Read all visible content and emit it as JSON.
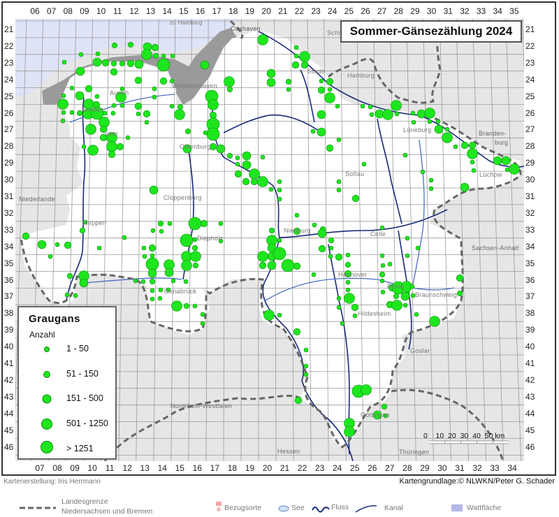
{
  "title": "Sommer-Gänsezählung 2024",
  "grid": {
    "top_columns": [
      "06",
      "07",
      "08",
      "09",
      "10",
      "11",
      "12",
      "13",
      "14",
      "15",
      "16",
      "17",
      "18",
      "19",
      "20",
      "21",
      "22",
      "23",
      "24",
      "25",
      "26",
      "27",
      "28",
      "29",
      "30",
      "31",
      "32",
      "33",
      "34",
      "35"
    ],
    "bottom_columns": [
      "07",
      "08",
      "09",
      "10",
      "11",
      "12",
      "13",
      "14",
      "15",
      "16",
      "17",
      "18",
      "19",
      "20",
      "21",
      "22",
      "23",
      "24",
      "25",
      "26",
      "27",
      "28",
      "29",
      "30",
      "31",
      "32",
      "33",
      "34"
    ],
    "rows": [
      "21",
      "22",
      "23",
      "24",
      "25",
      "26",
      "27",
      "28",
      "29",
      "30",
      "31",
      "32",
      "33",
      "34",
      "35",
      "36",
      "37",
      "38",
      "39",
      "40",
      "41",
      "42",
      "43",
      "44",
      "45",
      "46"
    ]
  },
  "map": {
    "places": [
      "zu Hamburg",
      "Cuxhaven",
      "Schl",
      "Stade",
      "Hamburg",
      "Wilhelmshaven",
      "Aurich",
      "Emden",
      "Leer",
      "Oldenburg",
      "Cloppenburg",
      "Meppen",
      "Diepholz",
      "Nienburg",
      "Soltau",
      "Celle",
      "Hannover",
      "Peine",
      "Braunschweig",
      "Hildesheim",
      "Osnabrück",
      "Lüneburg",
      "Lüchow",
      "Goslar",
      "Göttingen"
    ],
    "regions": [
      "Niederlande",
      "Branden-",
      "burg",
      "Sachsen-Anhalt",
      "Nordrhein-Westfalen",
      "Hessen",
      "Thüringen"
    ],
    "colors": {
      "dot": "#1ee61e",
      "dot_outline": "#0a8a0a",
      "sea": "#dfe3f7",
      "watt": "#b3b8e6",
      "outside": "#e6e6e6",
      "river": "#1a2a7a",
      "canal": "#4a6fc0",
      "border": "#666666"
    }
  },
  "legend": {
    "species": "Graugans",
    "subtitle": "Anzahl",
    "classes": [
      "1 - 50",
      "51 - 150",
      "151 - 500",
      "501 - 1250",
      "> 1251"
    ]
  },
  "scale": {
    "labels": [
      "0",
      "10",
      "20",
      "30",
      "40",
      "50 km"
    ]
  },
  "footer": {
    "author": "Kartenerstellung: Iris Herrmann",
    "source": "Kartengrundlage:© NLWKN/Peter G. Schader"
  },
  "bottom_legend": {
    "border_line1": "Landesgrenze",
    "border_line2": "Niedersachsen und Bremen",
    "places": "Bezugsorte",
    "lake": "See",
    "river": "Fluss",
    "canal": "Kanal",
    "watt": "Wattfläche"
  }
}
